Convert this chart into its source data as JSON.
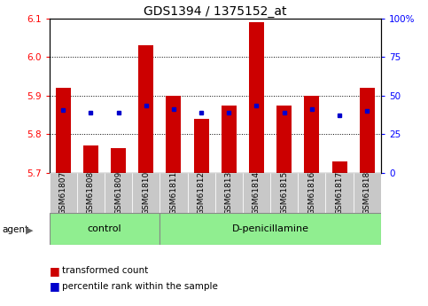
{
  "title": "GDS1394 / 1375152_at",
  "samples": [
    "GSM61807",
    "GSM61808",
    "GSM61809",
    "GSM61810",
    "GSM61811",
    "GSM61812",
    "GSM61813",
    "GSM61814",
    "GSM61815",
    "GSM61816",
    "GSM61817",
    "GSM61818"
  ],
  "red_values": [
    5.92,
    5.77,
    5.765,
    6.03,
    5.9,
    5.84,
    5.875,
    6.09,
    5.875,
    5.9,
    5.73,
    5.92
  ],
  "blue_values": [
    5.862,
    5.855,
    5.855,
    5.875,
    5.865,
    5.857,
    5.856,
    5.875,
    5.856,
    5.865,
    5.85,
    5.86
  ],
  "ymin": 5.7,
  "ymax": 6.1,
  "yticks": [
    5.7,
    5.8,
    5.9,
    6.0,
    6.1
  ],
  "y2ticks": [
    0,
    25,
    50,
    75,
    100
  ],
  "y2labels": [
    "0",
    "25",
    "50",
    "75",
    "100%"
  ],
  "bar_color": "#cc0000",
  "dot_color": "#0000cc",
  "bar_width": 0.55,
  "control_count": 4,
  "control_label": "control",
  "treatment_label": "D-penicillamine",
  "agent_label": "agent",
  "legend_red": "transformed count",
  "legend_blue": "percentile rank within the sample",
  "group_bg_color": "#90ee90",
  "sample_bg_color": "#c8c8c8",
  "title_fontsize": 10,
  "tick_fontsize": 7.5,
  "sample_fontsize": 6.5,
  "group_fontsize": 8,
  "legend_fontsize": 7.5
}
